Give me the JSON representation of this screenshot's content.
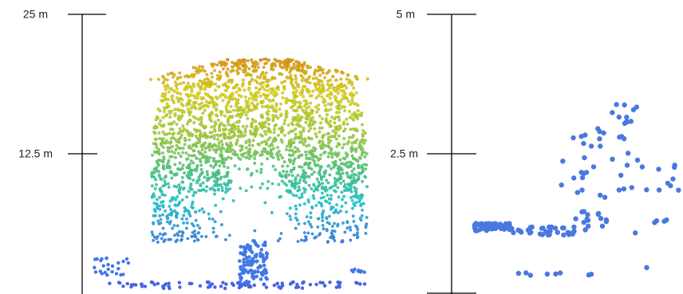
{
  "panels": [
    {
      "scale_bar": {
        "labels": [
          "25 m",
          "12.5 m"
        ]
      }
    },
    {
      "scale_bar": {
        "labels": [
          "5 m",
          "2.5 m"
        ]
      }
    }
  ]
}
